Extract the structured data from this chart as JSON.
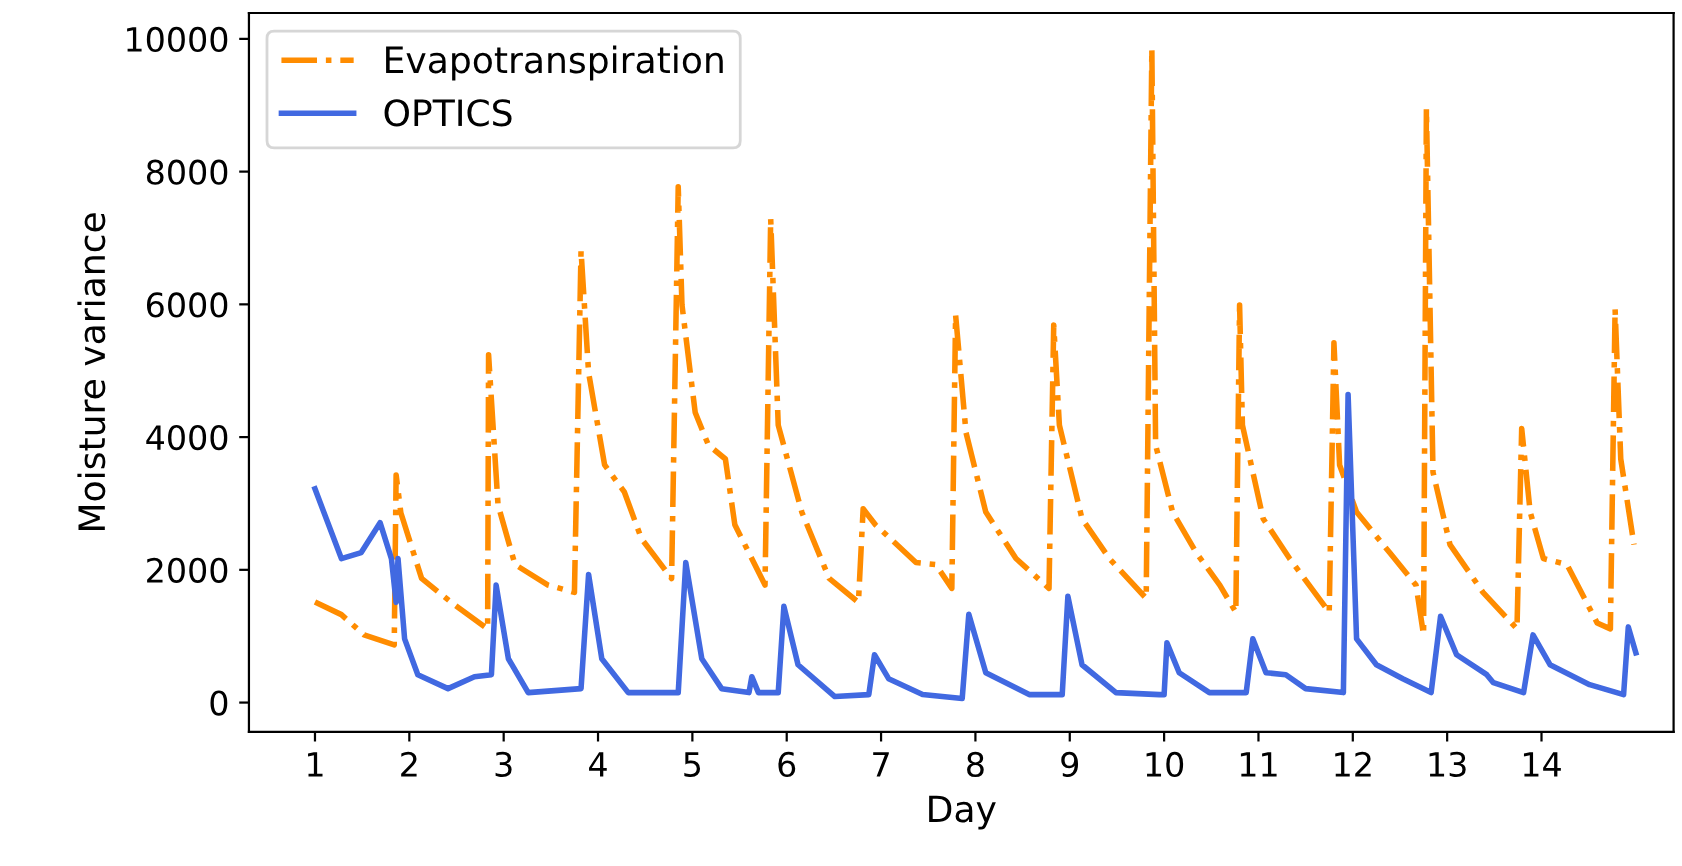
{
  "chart_data": {
    "type": "line",
    "xlabel": "Day",
    "ylabel": "Moisture variance",
    "xlim": [
      0.3,
      15.4
    ],
    "ylim": [
      -440,
      10390
    ],
    "xticks": [
      1,
      2,
      3,
      4,
      5,
      6,
      7,
      8,
      9,
      10,
      11,
      12,
      13,
      14
    ],
    "yticks": [
      0,
      2000,
      4000,
      6000,
      8000,
      10000
    ],
    "grid": false,
    "legend": "top left",
    "marker": "none",
    "series": [
      {
        "name": "Evapotranspiration",
        "color": "#ff8c00",
        "line_style": "dashdot",
        "x": [
          1.0,
          1.28,
          1.52,
          1.84,
          1.86,
          1.91,
          2.13,
          2.48,
          2.83,
          2.84,
          2.94,
          3.12,
          3.47,
          3.75,
          3.82,
          3.9,
          4.07,
          4.28,
          4.46,
          4.78,
          4.85,
          4.89,
          5.03,
          5.17,
          5.35,
          5.45,
          5.77,
          5.83,
          5.91,
          6.16,
          6.45,
          6.76,
          6.81,
          6.94,
          7.37,
          7.58,
          7.75,
          7.79,
          7.9,
          8.11,
          8.43,
          8.78,
          8.83,
          8.89,
          9.13,
          9.42,
          9.81,
          9.87,
          9.91,
          10.09,
          10.34,
          10.59,
          10.76,
          10.8,
          10.83,
          11.05,
          11.33,
          11.75,
          11.8,
          11.86,
          12.04,
          12.39,
          12.67,
          12.75,
          12.78,
          12.85,
          13.03,
          13.38,
          13.74,
          13.79,
          13.88,
          14.02,
          14.27,
          14.59,
          14.73,
          14.78,
          14.84,
          14.98
        ],
        "values": [
          1515,
          1325,
          1020,
          870,
          3430,
          2860,
          1870,
          1470,
          1110,
          5240,
          2980,
          2080,
          1770,
          1660,
          6810,
          4970,
          3580,
          3170,
          2470,
          1870,
          7770,
          5990,
          4370,
          3880,
          3670,
          2680,
          1770,
          7290,
          4180,
          2870,
          1870,
          1510,
          2920,
          2680,
          2110,
          2080,
          1720,
          5840,
          4070,
          2870,
          2170,
          1720,
          5690,
          4180,
          2770,
          2170,
          1570,
          9850,
          3880,
          2870,
          2260,
          1770,
          1360,
          5990,
          4180,
          2770,
          2170,
          1360,
          5420,
          3580,
          2870,
          2260,
          1770,
          1020,
          8950,
          3470,
          2380,
          1660,
          1110,
          4130,
          2870,
          2170,
          2080,
          1200,
          1110,
          5930,
          3670,
          2380
        ]
      },
      {
        "name": "OPTICS",
        "color": "#4169e1",
        "line_style": "solid",
        "x": [
          1.0,
          1.28,
          1.49,
          1.69,
          1.81,
          1.86,
          1.88,
          1.95,
          2.09,
          2.41,
          2.69,
          2.87,
          2.92,
          3.05,
          3.26,
          3.82,
          3.9,
          4.04,
          4.32,
          4.85,
          4.93,
          5.1,
          5.31,
          5.6,
          5.63,
          5.7,
          5.91,
          5.97,
          6.12,
          6.51,
          6.87,
          6.93,
          7.08,
          7.44,
          7.86,
          7.93,
          8.11,
          8.57,
          8.92,
          8.98,
          9.13,
          9.49,
          9.95,
          10.0,
          10.03,
          10.16,
          10.48,
          10.87,
          10.94,
          11.08,
          11.29,
          11.5,
          11.9,
          11.95,
          12.04,
          12.25,
          12.53,
          12.83,
          12.93,
          13.1,
          13.42,
          13.49,
          13.81,
          13.91,
          14.09,
          14.51,
          14.87,
          14.92,
          15.0
        ],
        "values": [
          3220,
          2170,
          2260,
          2710,
          2170,
          1510,
          2170,
          960,
          420,
          210,
          390,
          420,
          1770,
          660,
          150,
          210,
          1930,
          660,
          150,
          150,
          2110,
          660,
          210,
          150,
          390,
          150,
          150,
          1450,
          570,
          90,
          120,
          720,
          360,
          120,
          60,
          1330,
          450,
          120,
          120,
          1600,
          570,
          150,
          120,
          120,
          900,
          450,
          150,
          150,
          960,
          450,
          420,
          210,
          150,
          4640,
          960,
          570,
          360,
          150,
          1300,
          720,
          420,
          300,
          150,
          1020,
          570,
          270,
          120,
          1140,
          750
        ]
      }
    ]
  }
}
